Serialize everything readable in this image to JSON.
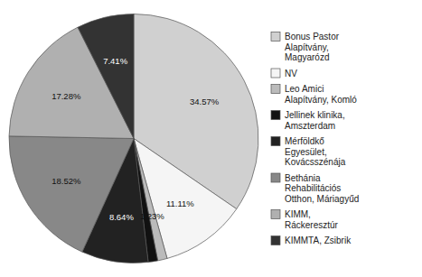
{
  "chart_data": {
    "type": "pie",
    "categories": [
      "Bonus Pastor\nAlapítvány,\nMagyarózd",
      "NV",
      "Leo Amici\nAlapítvány, Komló",
      "Jellinek klinika,\nAmszterdam",
      "Mérföldkő\nEgyesület,\nKovácsszénája",
      "Bethánia\nRehabilitációs\nOtthon, Máriagyűd",
      "KIMM,\nRáckeresztúr",
      "KIMMTA, Zsibrik"
    ],
    "values": [
      34.57,
      11.11,
      1.23,
      1.23,
      8.64,
      18.52,
      17.28,
      7.41
    ],
    "value_labels": [
      "34.57%",
      "11.11%",
      "1.23%",
      null,
      "8.64%",
      "18.52%",
      "17.28%",
      "7.41%"
    ],
    "colors": [
      "#d0d0d0",
      "#f5f5f5",
      "#bbbbbb",
      "#111111",
      "#222222",
      "#888888",
      "#b0b0b0",
      "#333333"
    ],
    "data_labels": true,
    "legend": "right"
  }
}
